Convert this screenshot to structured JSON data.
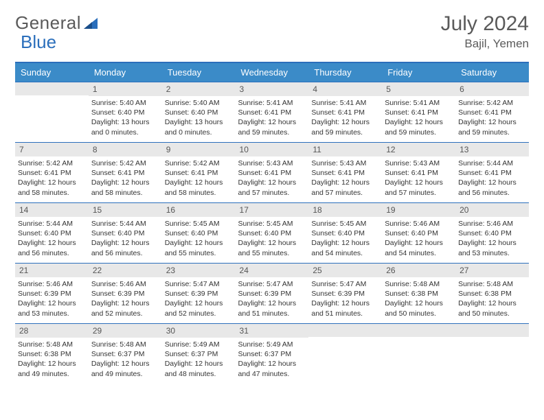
{
  "brand": {
    "word1": "General",
    "word2": "Blue"
  },
  "title": "July 2024",
  "location": "Bajil, Yemen",
  "colors": {
    "header_bg": "#3b8bc8",
    "header_text": "#ffffff",
    "accent_line": "#2a6ebb",
    "daynum_bg": "#e8e8e8",
    "body_text": "#333333",
    "brand_gray": "#5a5a5a",
    "brand_blue": "#2a6ebb",
    "page_bg": "#ffffff"
  },
  "typography": {
    "title_fontsize": 30,
    "location_fontsize": 17,
    "dayheader_fontsize": 13,
    "daynum_fontsize": 12,
    "detail_fontsize": 10.5
  },
  "day_headers": [
    "Sunday",
    "Monday",
    "Tuesday",
    "Wednesday",
    "Thursday",
    "Friday",
    "Saturday"
  ],
  "weeks": [
    [
      {
        "num": "",
        "sunrise": "",
        "sunset": "",
        "daylight": ""
      },
      {
        "num": "1",
        "sunrise": "Sunrise: 5:40 AM",
        "sunset": "Sunset: 6:40 PM",
        "daylight": "Daylight: 13 hours and 0 minutes."
      },
      {
        "num": "2",
        "sunrise": "Sunrise: 5:40 AM",
        "sunset": "Sunset: 6:40 PM",
        "daylight": "Daylight: 13 hours and 0 minutes."
      },
      {
        "num": "3",
        "sunrise": "Sunrise: 5:41 AM",
        "sunset": "Sunset: 6:41 PM",
        "daylight": "Daylight: 12 hours and 59 minutes."
      },
      {
        "num": "4",
        "sunrise": "Sunrise: 5:41 AM",
        "sunset": "Sunset: 6:41 PM",
        "daylight": "Daylight: 12 hours and 59 minutes."
      },
      {
        "num": "5",
        "sunrise": "Sunrise: 5:41 AM",
        "sunset": "Sunset: 6:41 PM",
        "daylight": "Daylight: 12 hours and 59 minutes."
      },
      {
        "num": "6",
        "sunrise": "Sunrise: 5:42 AM",
        "sunset": "Sunset: 6:41 PM",
        "daylight": "Daylight: 12 hours and 59 minutes."
      }
    ],
    [
      {
        "num": "7",
        "sunrise": "Sunrise: 5:42 AM",
        "sunset": "Sunset: 6:41 PM",
        "daylight": "Daylight: 12 hours and 58 minutes."
      },
      {
        "num": "8",
        "sunrise": "Sunrise: 5:42 AM",
        "sunset": "Sunset: 6:41 PM",
        "daylight": "Daylight: 12 hours and 58 minutes."
      },
      {
        "num": "9",
        "sunrise": "Sunrise: 5:42 AM",
        "sunset": "Sunset: 6:41 PM",
        "daylight": "Daylight: 12 hours and 58 minutes."
      },
      {
        "num": "10",
        "sunrise": "Sunrise: 5:43 AM",
        "sunset": "Sunset: 6:41 PM",
        "daylight": "Daylight: 12 hours and 57 minutes."
      },
      {
        "num": "11",
        "sunrise": "Sunrise: 5:43 AM",
        "sunset": "Sunset: 6:41 PM",
        "daylight": "Daylight: 12 hours and 57 minutes."
      },
      {
        "num": "12",
        "sunrise": "Sunrise: 5:43 AM",
        "sunset": "Sunset: 6:41 PM",
        "daylight": "Daylight: 12 hours and 57 minutes."
      },
      {
        "num": "13",
        "sunrise": "Sunrise: 5:44 AM",
        "sunset": "Sunset: 6:41 PM",
        "daylight": "Daylight: 12 hours and 56 minutes."
      }
    ],
    [
      {
        "num": "14",
        "sunrise": "Sunrise: 5:44 AM",
        "sunset": "Sunset: 6:40 PM",
        "daylight": "Daylight: 12 hours and 56 minutes."
      },
      {
        "num": "15",
        "sunrise": "Sunrise: 5:44 AM",
        "sunset": "Sunset: 6:40 PM",
        "daylight": "Daylight: 12 hours and 56 minutes."
      },
      {
        "num": "16",
        "sunrise": "Sunrise: 5:45 AM",
        "sunset": "Sunset: 6:40 PM",
        "daylight": "Daylight: 12 hours and 55 minutes."
      },
      {
        "num": "17",
        "sunrise": "Sunrise: 5:45 AM",
        "sunset": "Sunset: 6:40 PM",
        "daylight": "Daylight: 12 hours and 55 minutes."
      },
      {
        "num": "18",
        "sunrise": "Sunrise: 5:45 AM",
        "sunset": "Sunset: 6:40 PM",
        "daylight": "Daylight: 12 hours and 54 minutes."
      },
      {
        "num": "19",
        "sunrise": "Sunrise: 5:46 AM",
        "sunset": "Sunset: 6:40 PM",
        "daylight": "Daylight: 12 hours and 54 minutes."
      },
      {
        "num": "20",
        "sunrise": "Sunrise: 5:46 AM",
        "sunset": "Sunset: 6:40 PM",
        "daylight": "Daylight: 12 hours and 53 minutes."
      }
    ],
    [
      {
        "num": "21",
        "sunrise": "Sunrise: 5:46 AM",
        "sunset": "Sunset: 6:39 PM",
        "daylight": "Daylight: 12 hours and 53 minutes."
      },
      {
        "num": "22",
        "sunrise": "Sunrise: 5:46 AM",
        "sunset": "Sunset: 6:39 PM",
        "daylight": "Daylight: 12 hours and 52 minutes."
      },
      {
        "num": "23",
        "sunrise": "Sunrise: 5:47 AM",
        "sunset": "Sunset: 6:39 PM",
        "daylight": "Daylight: 12 hours and 52 minutes."
      },
      {
        "num": "24",
        "sunrise": "Sunrise: 5:47 AM",
        "sunset": "Sunset: 6:39 PM",
        "daylight": "Daylight: 12 hours and 51 minutes."
      },
      {
        "num": "25",
        "sunrise": "Sunrise: 5:47 AM",
        "sunset": "Sunset: 6:39 PM",
        "daylight": "Daylight: 12 hours and 51 minutes."
      },
      {
        "num": "26",
        "sunrise": "Sunrise: 5:48 AM",
        "sunset": "Sunset: 6:38 PM",
        "daylight": "Daylight: 12 hours and 50 minutes."
      },
      {
        "num": "27",
        "sunrise": "Sunrise: 5:48 AM",
        "sunset": "Sunset: 6:38 PM",
        "daylight": "Daylight: 12 hours and 50 minutes."
      }
    ],
    [
      {
        "num": "28",
        "sunrise": "Sunrise: 5:48 AM",
        "sunset": "Sunset: 6:38 PM",
        "daylight": "Daylight: 12 hours and 49 minutes."
      },
      {
        "num": "29",
        "sunrise": "Sunrise: 5:48 AM",
        "sunset": "Sunset: 6:37 PM",
        "daylight": "Daylight: 12 hours and 49 minutes."
      },
      {
        "num": "30",
        "sunrise": "Sunrise: 5:49 AM",
        "sunset": "Sunset: 6:37 PM",
        "daylight": "Daylight: 12 hours and 48 minutes."
      },
      {
        "num": "31",
        "sunrise": "Sunrise: 5:49 AM",
        "sunset": "Sunset: 6:37 PM",
        "daylight": "Daylight: 12 hours and 47 minutes."
      },
      {
        "num": "",
        "sunrise": "",
        "sunset": "",
        "daylight": ""
      },
      {
        "num": "",
        "sunrise": "",
        "sunset": "",
        "daylight": ""
      },
      {
        "num": "",
        "sunrise": "",
        "sunset": "",
        "daylight": ""
      }
    ]
  ]
}
